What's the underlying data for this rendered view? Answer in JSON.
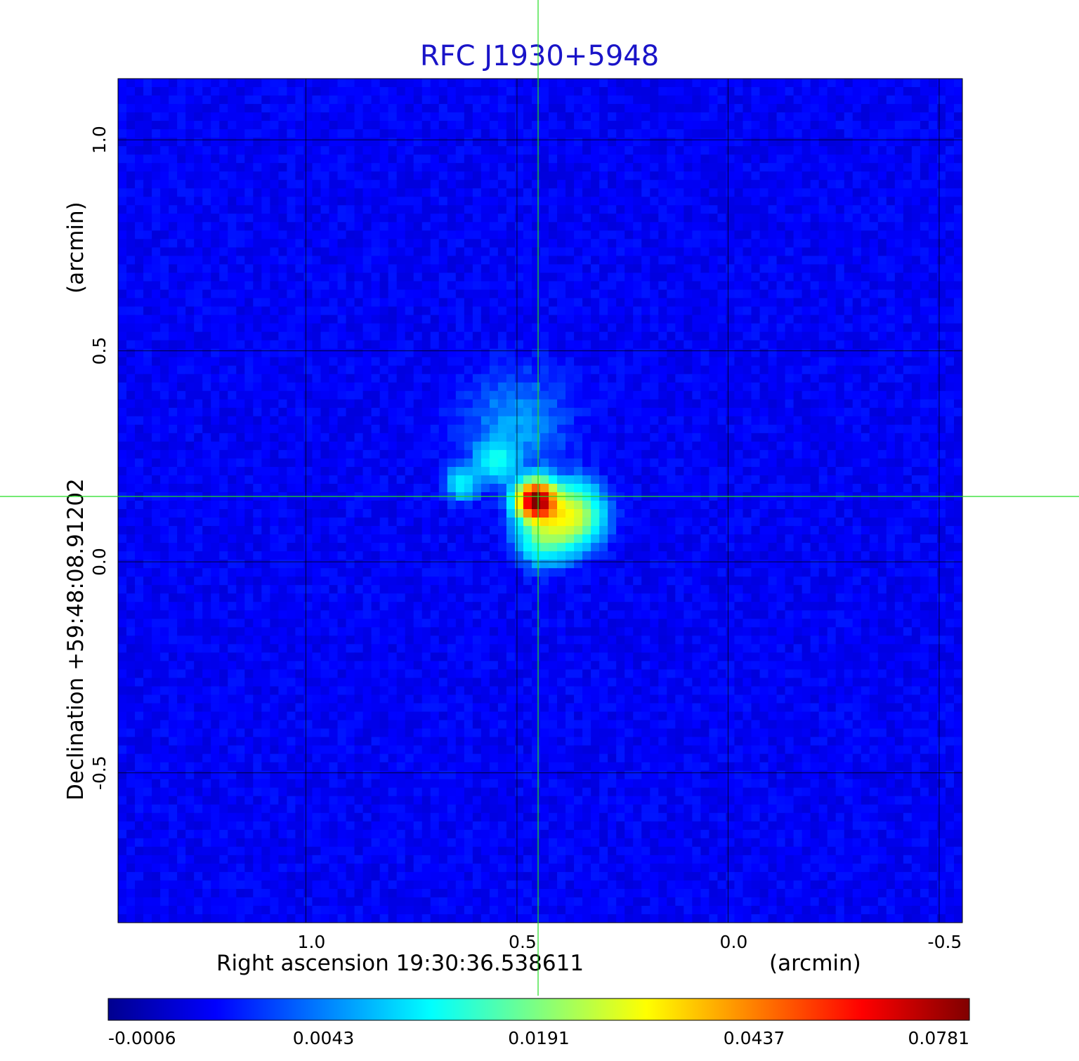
{
  "chart_data": {
    "type": "heatmap",
    "title": "RFC J1930+5948",
    "xlabel": "Right ascension  19:30:36.538611",
    "xunit": "(arcmin)",
    "ylabel": "Declination  +59:48:08.91202",
    "yunit": "(arcmin)",
    "xlim": [
      1.445,
      -0.555
    ],
    "ylim": [
      -0.855,
      1.145
    ],
    "x_ticks": [
      {
        "value": 1.0,
        "label": "1.0"
      },
      {
        "value": 0.5,
        "label": "0.5"
      },
      {
        "value": 0.0,
        "label": "0.0"
      },
      {
        "value": -0.5,
        "label": "-0.5"
      }
    ],
    "y_ticks": [
      {
        "value": 1.0,
        "label": "1.0"
      },
      {
        "value": 0.5,
        "label": "0.5"
      },
      {
        "value": 0.0,
        "label": "0.0"
      },
      {
        "value": -0.5,
        "label": "-0.5"
      }
    ],
    "grid": true,
    "crosshair": {
      "x": 0.45,
      "y": 0.155,
      "color": "#22dd22"
    },
    "colormap": "jet",
    "colorbar": {
      "position": "bottom",
      "tick_labels": [
        "-0.0006",
        "0.0043",
        "0.0191",
        "0.0437",
        "0.0781"
      ]
    },
    "peak_value": 0.0781,
    "features": [
      {
        "name": "core",
        "x": 0.455,
        "y": 0.145,
        "peak": 0.078
      },
      {
        "name": "jet-southwest",
        "x": 0.375,
        "y": 0.11,
        "peak": 0.026
      },
      {
        "name": "jet-southwest-outer",
        "x": 0.44,
        "y": 0.06,
        "peak": 0.013
      },
      {
        "name": "knot-north",
        "x": 0.55,
        "y": 0.24,
        "peak": 0.009
      },
      {
        "name": "knot-west",
        "x": 0.63,
        "y": 0.185,
        "peak": 0.008
      },
      {
        "name": "diffuse-north",
        "x": 0.5,
        "y": 0.33,
        "peak": 0.0035
      }
    ]
  }
}
